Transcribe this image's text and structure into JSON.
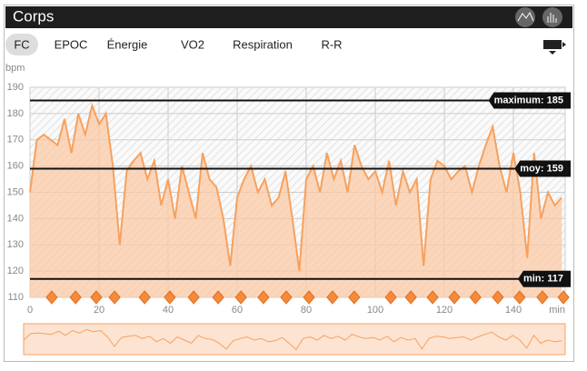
{
  "header": {
    "title": "Corps"
  },
  "tabs": [
    "FC",
    "EPOC",
    "Énergie",
    "VO2",
    "Respiration",
    "R-R"
  ],
  "chart_data": {
    "type": "area",
    "y_label": "bpm",
    "x_label": "min",
    "color": "#f7a15e",
    "x": [
      0,
      2,
      4,
      6,
      8,
      10,
      12,
      14,
      16,
      18,
      20,
      22,
      24,
      26,
      28,
      30,
      32,
      34,
      36,
      38,
      40,
      42,
      44,
      46,
      48,
      50,
      52,
      54,
      56,
      58,
      60,
      62,
      64,
      66,
      68,
      70,
      72,
      74,
      76,
      78,
      80,
      82,
      84,
      86,
      88,
      90,
      92,
      94,
      96,
      98,
      100,
      102,
      104,
      106,
      108,
      110,
      112,
      114,
      116,
      118,
      120,
      122,
      124,
      126,
      128,
      130,
      132,
      134,
      136,
      138,
      140,
      142,
      144,
      146,
      148,
      150,
      152,
      154
    ],
    "values": [
      150,
      170,
      172,
      170,
      168,
      178,
      165,
      180,
      172,
      183,
      176,
      180,
      160,
      130,
      158,
      162,
      165,
      155,
      162,
      145,
      155,
      140,
      160,
      150,
      140,
      165,
      155,
      152,
      140,
      122,
      148,
      155,
      160,
      150,
      155,
      145,
      148,
      158,
      140,
      120,
      155,
      160,
      150,
      165,
      155,
      162,
      150,
      168,
      160,
      155,
      158,
      150,
      162,
      145,
      158,
      150,
      155,
      122,
      155,
      162,
      160,
      155,
      158,
      160,
      150,
      160,
      168,
      175,
      160,
      150,
      165,
      150,
      125,
      165,
      140,
      150,
      145,
      148
    ],
    "xlim": [
      0,
      155
    ],
    "xticks": [
      0,
      20,
      40,
      60,
      80,
      100,
      120,
      140
    ],
    "ylim": [
      110,
      190
    ],
    "yticks": [
      110,
      120,
      130,
      140,
      150,
      160,
      170,
      180,
      190
    ],
    "grid": true,
    "reference_lines": [
      {
        "value": 185,
        "label": "maximum: 185"
      },
      {
        "value": 159,
        "label": "moy: 159"
      },
      {
        "value": 117,
        "label": "min: 117"
      }
    ],
    "markers_x": [
      6.3,
      13.2,
      19.2,
      24.5,
      33.2,
      40.5,
      47.4,
      54.5,
      61.1,
      67.6,
      74.2,
      80.8,
      87.6,
      93.9,
      104.5,
      110.3,
      116.6,
      122.9,
      129,
      135.5,
      141.8,
      148.4,
      154.5
    ]
  }
}
